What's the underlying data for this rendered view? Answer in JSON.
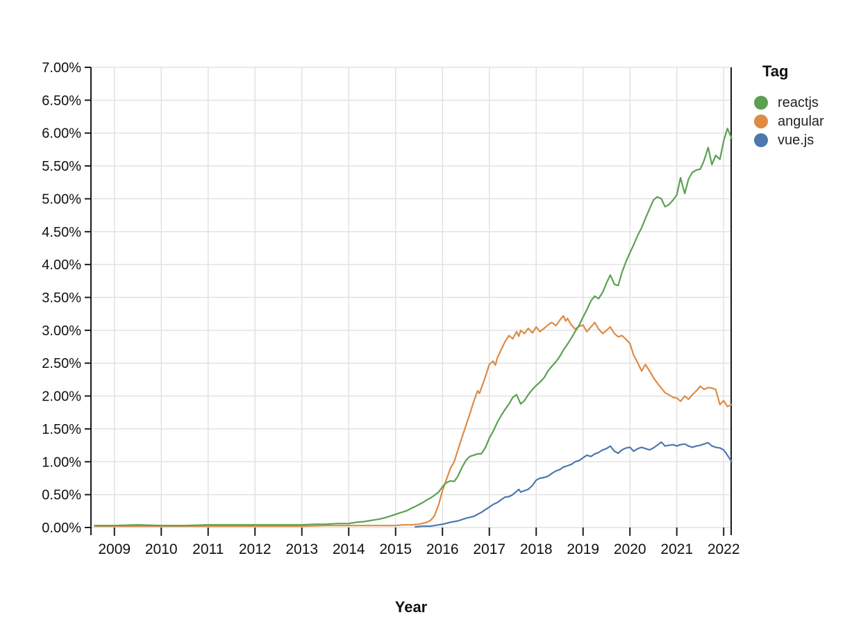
{
  "colors": {
    "background": "#ffffff",
    "grid": "#e2e2e2",
    "axis": "#1a1a1a",
    "tick_text": "#111111"
  },
  "chart_data": {
    "type": "line",
    "title": "",
    "xlabel": "Year",
    "ylabel": "",
    "legend_title": "Tag",
    "legend_position": "right",
    "grid": true,
    "x_domain": [
      2008.5,
      2022.16
    ],
    "y_domain": [
      0,
      7
    ],
    "x_ticks": [
      2009,
      2010,
      2011,
      2012,
      2013,
      2014,
      2015,
      2016,
      2017,
      2018,
      2019,
      2020,
      2021,
      2022
    ],
    "x_tick_labels": [
      "2009",
      "2010",
      "2011",
      "2012",
      "2013",
      "2014",
      "2015",
      "2016",
      "2017",
      "2018",
      "2019",
      "2020",
      "2021",
      "2022"
    ],
    "y_ticks": [
      0,
      0.5,
      1,
      1.5,
      2,
      2.5,
      3,
      3.5,
      4,
      4.5,
      5,
      5.5,
      6,
      6.5,
      7
    ],
    "y_tick_labels": [
      "0.00%",
      "0.50%",
      "1.00%",
      "1.50%",
      "2.00%",
      "2.50%",
      "3.00%",
      "3.50%",
      "4.00%",
      "4.50%",
      "5.00%",
      "5.50%",
      "6.00%",
      "6.50%",
      "7.00%"
    ],
    "series": [
      {
        "name": "reactjs",
        "color": "#5ba052",
        "points": [
          [
            2008.58,
            0.03
          ],
          [
            2009.0,
            0.03
          ],
          [
            2009.5,
            0.04
          ],
          [
            2010.0,
            0.03
          ],
          [
            2010.5,
            0.03
          ],
          [
            2011.0,
            0.04
          ],
          [
            2011.5,
            0.04
          ],
          [
            2012.0,
            0.04
          ],
          [
            2012.5,
            0.04
          ],
          [
            2013.0,
            0.04
          ],
          [
            2013.25,
            0.05
          ],
          [
            2013.5,
            0.05
          ],
          [
            2013.75,
            0.06
          ],
          [
            2014.0,
            0.06
          ],
          [
            2014.17,
            0.08
          ],
          [
            2014.33,
            0.09
          ],
          [
            2014.5,
            0.11
          ],
          [
            2014.67,
            0.13
          ],
          [
            2014.83,
            0.16
          ],
          [
            2015.0,
            0.2
          ],
          [
            2015.08,
            0.22
          ],
          [
            2015.17,
            0.24
          ],
          [
            2015.25,
            0.26
          ],
          [
            2015.33,
            0.29
          ],
          [
            2015.42,
            0.32
          ],
          [
            2015.5,
            0.35
          ],
          [
            2015.58,
            0.38
          ],
          [
            2015.67,
            0.42
          ],
          [
            2015.75,
            0.45
          ],
          [
            2015.83,
            0.49
          ],
          [
            2015.92,
            0.54
          ],
          [
            2016.0,
            0.62
          ],
          [
            2016.08,
            0.68
          ],
          [
            2016.17,
            0.71
          ],
          [
            2016.25,
            0.7
          ],
          [
            2016.33,
            0.78
          ],
          [
            2016.42,
            0.92
          ],
          [
            2016.5,
            1.02
          ],
          [
            2016.58,
            1.08
          ],
          [
            2016.67,
            1.1
          ],
          [
            2016.75,
            1.12
          ],
          [
            2016.83,
            1.12
          ],
          [
            2016.92,
            1.22
          ],
          [
            2017.0,
            1.36
          ],
          [
            2017.08,
            1.46
          ],
          [
            2017.17,
            1.6
          ],
          [
            2017.25,
            1.7
          ],
          [
            2017.33,
            1.79
          ],
          [
            2017.42,
            1.88
          ],
          [
            2017.5,
            1.98
          ],
          [
            2017.58,
            2.02
          ],
          [
            2017.67,
            1.88
          ],
          [
            2017.75,
            1.93
          ],
          [
            2017.83,
            2.02
          ],
          [
            2017.92,
            2.1
          ],
          [
            2018.0,
            2.16
          ],
          [
            2018.08,
            2.21
          ],
          [
            2018.17,
            2.28
          ],
          [
            2018.25,
            2.38
          ],
          [
            2018.33,
            2.45
          ],
          [
            2018.42,
            2.52
          ],
          [
            2018.5,
            2.6
          ],
          [
            2018.58,
            2.7
          ],
          [
            2018.67,
            2.79
          ],
          [
            2018.75,
            2.88
          ],
          [
            2018.83,
            2.98
          ],
          [
            2018.92,
            3.08
          ],
          [
            2019.0,
            3.2
          ],
          [
            2019.08,
            3.31
          ],
          [
            2019.17,
            3.45
          ],
          [
            2019.25,
            3.52
          ],
          [
            2019.33,
            3.48
          ],
          [
            2019.42,
            3.58
          ],
          [
            2019.5,
            3.72
          ],
          [
            2019.58,
            3.84
          ],
          [
            2019.67,
            3.7
          ],
          [
            2019.75,
            3.68
          ],
          [
            2019.83,
            3.88
          ],
          [
            2019.92,
            4.05
          ],
          [
            2020.0,
            4.18
          ],
          [
            2020.08,
            4.3
          ],
          [
            2020.17,
            4.45
          ],
          [
            2020.25,
            4.56
          ],
          [
            2020.33,
            4.7
          ],
          [
            2020.42,
            4.85
          ],
          [
            2020.5,
            4.98
          ],
          [
            2020.58,
            5.03
          ],
          [
            2020.67,
            5.0
          ],
          [
            2020.75,
            4.88
          ],
          [
            2020.83,
            4.91
          ],
          [
            2020.92,
            4.98
          ],
          [
            2021.0,
            5.06
          ],
          [
            2021.08,
            5.32
          ],
          [
            2021.17,
            5.08
          ],
          [
            2021.25,
            5.3
          ],
          [
            2021.33,
            5.4
          ],
          [
            2021.42,
            5.44
          ],
          [
            2021.5,
            5.45
          ],
          [
            2021.58,
            5.58
          ],
          [
            2021.67,
            5.78
          ],
          [
            2021.75,
            5.52
          ],
          [
            2021.83,
            5.66
          ],
          [
            2021.92,
            5.6
          ],
          [
            2022.0,
            5.88
          ],
          [
            2022.08,
            6.07
          ],
          [
            2022.17,
            5.92
          ]
        ]
      },
      {
        "name": "angular",
        "color": "#dd8b45",
        "points": [
          [
            2008.58,
            0.02
          ],
          [
            2009.0,
            0.02
          ],
          [
            2009.5,
            0.02
          ],
          [
            2010.0,
            0.02
          ],
          [
            2010.5,
            0.02
          ],
          [
            2011.0,
            0.02
          ],
          [
            2011.5,
            0.02
          ],
          [
            2012.0,
            0.02
          ],
          [
            2012.5,
            0.02
          ],
          [
            2013.0,
            0.02
          ],
          [
            2013.5,
            0.03
          ],
          [
            2014.0,
            0.03
          ],
          [
            2014.5,
            0.03
          ],
          [
            2015.0,
            0.03
          ],
          [
            2015.17,
            0.04
          ],
          [
            2015.33,
            0.04
          ],
          [
            2015.5,
            0.05
          ],
          [
            2015.67,
            0.08
          ],
          [
            2015.75,
            0.11
          ],
          [
            2015.83,
            0.18
          ],
          [
            2015.92,
            0.35
          ],
          [
            2016.0,
            0.56
          ],
          [
            2016.08,
            0.72
          ],
          [
            2016.17,
            0.9
          ],
          [
            2016.25,
            1.0
          ],
          [
            2016.33,
            1.18
          ],
          [
            2016.42,
            1.38
          ],
          [
            2016.5,
            1.55
          ],
          [
            2016.58,
            1.72
          ],
          [
            2016.67,
            1.92
          ],
          [
            2016.75,
            2.08
          ],
          [
            2016.79,
            2.04
          ],
          [
            2016.83,
            2.12
          ],
          [
            2016.92,
            2.3
          ],
          [
            2017.0,
            2.48
          ],
          [
            2017.08,
            2.53
          ],
          [
            2017.13,
            2.47
          ],
          [
            2017.17,
            2.58
          ],
          [
            2017.25,
            2.7
          ],
          [
            2017.33,
            2.82
          ],
          [
            2017.42,
            2.92
          ],
          [
            2017.5,
            2.87
          ],
          [
            2017.58,
            2.98
          ],
          [
            2017.63,
            2.91
          ],
          [
            2017.67,
            3.0
          ],
          [
            2017.75,
            2.95
          ],
          [
            2017.83,
            3.03
          ],
          [
            2017.92,
            2.96
          ],
          [
            2018.0,
            3.05
          ],
          [
            2018.08,
            2.98
          ],
          [
            2018.17,
            3.03
          ],
          [
            2018.25,
            3.08
          ],
          [
            2018.33,
            3.12
          ],
          [
            2018.42,
            3.07
          ],
          [
            2018.5,
            3.15
          ],
          [
            2018.58,
            3.22
          ],
          [
            2018.63,
            3.14
          ],
          [
            2018.67,
            3.18
          ],
          [
            2018.75,
            3.08
          ],
          [
            2018.83,
            3.02
          ],
          [
            2018.92,
            3.06
          ],
          [
            2019.0,
            3.08
          ],
          [
            2019.08,
            2.98
          ],
          [
            2019.17,
            3.05
          ],
          [
            2019.25,
            3.12
          ],
          [
            2019.33,
            3.02
          ],
          [
            2019.42,
            2.95
          ],
          [
            2019.5,
            3.0
          ],
          [
            2019.58,
            3.05
          ],
          [
            2019.67,
            2.95
          ],
          [
            2019.75,
            2.9
          ],
          [
            2019.83,
            2.92
          ],
          [
            2019.92,
            2.86
          ],
          [
            2020.0,
            2.8
          ],
          [
            2020.08,
            2.62
          ],
          [
            2020.17,
            2.5
          ],
          [
            2020.25,
            2.38
          ],
          [
            2020.33,
            2.48
          ],
          [
            2020.42,
            2.38
          ],
          [
            2020.5,
            2.28
          ],
          [
            2020.58,
            2.2
          ],
          [
            2020.67,
            2.12
          ],
          [
            2020.75,
            2.05
          ],
          [
            2020.83,
            2.02
          ],
          [
            2020.92,
            1.98
          ],
          [
            2021.0,
            1.97
          ],
          [
            2021.08,
            1.92
          ],
          [
            2021.17,
            2.0
          ],
          [
            2021.25,
            1.95
          ],
          [
            2021.33,
            2.02
          ],
          [
            2021.42,
            2.08
          ],
          [
            2021.5,
            2.15
          ],
          [
            2021.58,
            2.1
          ],
          [
            2021.67,
            2.13
          ],
          [
            2021.75,
            2.12
          ],
          [
            2021.83,
            2.1
          ],
          [
            2021.92,
            1.87
          ],
          [
            2022.0,
            1.93
          ],
          [
            2022.08,
            1.84
          ],
          [
            2022.17,
            1.87
          ]
        ]
      },
      {
        "name": "vue.js",
        "color": "#4d77ae",
        "points": [
          [
            2015.42,
            0.01
          ],
          [
            2015.58,
            0.02
          ],
          [
            2015.75,
            0.02
          ],
          [
            2015.92,
            0.04
          ],
          [
            2016.0,
            0.05
          ],
          [
            2016.17,
            0.08
          ],
          [
            2016.33,
            0.1
          ],
          [
            2016.5,
            0.14
          ],
          [
            2016.67,
            0.17
          ],
          [
            2016.83,
            0.23
          ],
          [
            2017.0,
            0.31
          ],
          [
            2017.08,
            0.35
          ],
          [
            2017.17,
            0.38
          ],
          [
            2017.25,
            0.42
          ],
          [
            2017.33,
            0.46
          ],
          [
            2017.42,
            0.47
          ],
          [
            2017.5,
            0.5
          ],
          [
            2017.58,
            0.55
          ],
          [
            2017.63,
            0.58
          ],
          [
            2017.67,
            0.54
          ],
          [
            2017.75,
            0.56
          ],
          [
            2017.83,
            0.58
          ],
          [
            2017.92,
            0.64
          ],
          [
            2018.0,
            0.72
          ],
          [
            2018.08,
            0.75
          ],
          [
            2018.17,
            0.76
          ],
          [
            2018.25,
            0.78
          ],
          [
            2018.33,
            0.82
          ],
          [
            2018.42,
            0.86
          ],
          [
            2018.5,
            0.88
          ],
          [
            2018.58,
            0.92
          ],
          [
            2018.67,
            0.94
          ],
          [
            2018.75,
            0.96
          ],
          [
            2018.83,
            1.0
          ],
          [
            2018.92,
            1.02
          ],
          [
            2019.0,
            1.06
          ],
          [
            2019.08,
            1.1
          ],
          [
            2019.17,
            1.08
          ],
          [
            2019.25,
            1.12
          ],
          [
            2019.33,
            1.14
          ],
          [
            2019.42,
            1.18
          ],
          [
            2019.5,
            1.2
          ],
          [
            2019.58,
            1.24
          ],
          [
            2019.67,
            1.16
          ],
          [
            2019.75,
            1.13
          ],
          [
            2019.83,
            1.18
          ],
          [
            2019.92,
            1.21
          ],
          [
            2020.0,
            1.22
          ],
          [
            2020.08,
            1.16
          ],
          [
            2020.17,
            1.2
          ],
          [
            2020.25,
            1.22
          ],
          [
            2020.33,
            1.2
          ],
          [
            2020.42,
            1.18
          ],
          [
            2020.5,
            1.21
          ],
          [
            2020.58,
            1.25
          ],
          [
            2020.67,
            1.3
          ],
          [
            2020.75,
            1.24
          ],
          [
            2020.83,
            1.25
          ],
          [
            2020.92,
            1.26
          ],
          [
            2021.0,
            1.24
          ],
          [
            2021.08,
            1.26
          ],
          [
            2021.17,
            1.27
          ],
          [
            2021.25,
            1.24
          ],
          [
            2021.33,
            1.22
          ],
          [
            2021.42,
            1.24
          ],
          [
            2021.5,
            1.25
          ],
          [
            2021.58,
            1.27
          ],
          [
            2021.67,
            1.29
          ],
          [
            2021.75,
            1.24
          ],
          [
            2021.83,
            1.22
          ],
          [
            2021.92,
            1.21
          ],
          [
            2022.0,
            1.18
          ],
          [
            2022.08,
            1.1
          ],
          [
            2022.17,
            1.0
          ]
        ]
      }
    ]
  }
}
